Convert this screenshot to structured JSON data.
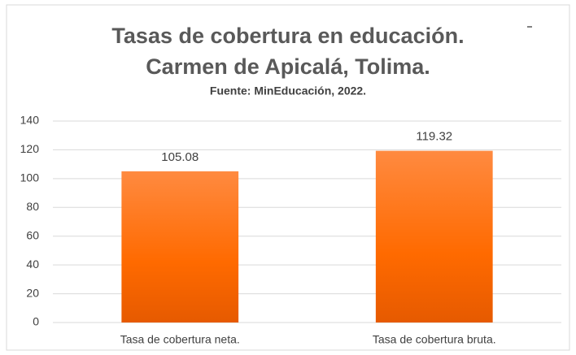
{
  "chart_data": {
    "type": "bar",
    "title": [
      "Tasas de cobertura en educación.",
      "Carmen de Apicalá, Tolima."
    ],
    "subtitle": "Fuente: MinEducación, 2022.",
    "categories": [
      "Tasa de cobertura neta.",
      "Tasa de cobertura bruta."
    ],
    "values": [
      105.08,
      119.32
    ],
    "color": "#ff7020",
    "ylim": [
      0,
      140
    ],
    "yticks": [
      0,
      20,
      40,
      60,
      80,
      100,
      120,
      140
    ],
    "grid": true
  }
}
